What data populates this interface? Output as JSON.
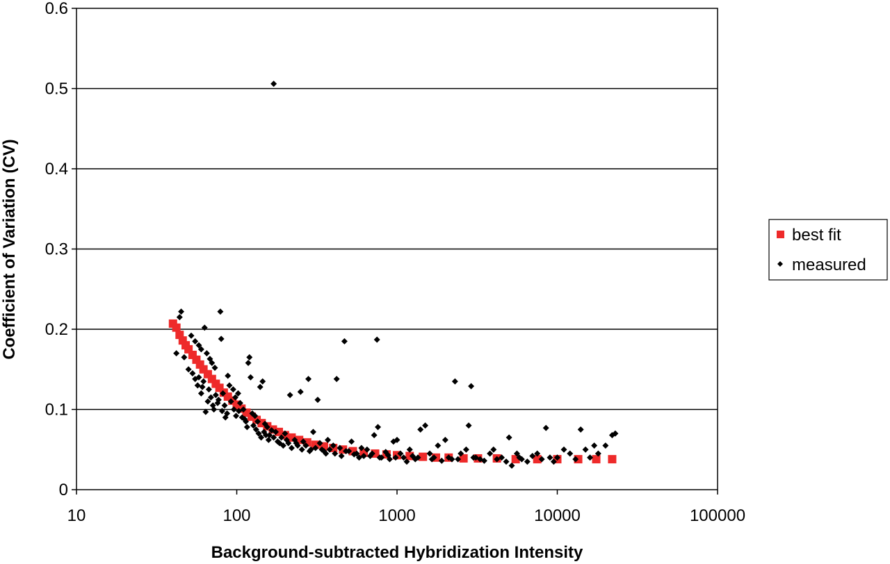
{
  "chart_data": {
    "type": "scatter",
    "title": "",
    "xlabel": "Background-subtracted Hybridization Intensity",
    "ylabel": "Coefficient of Variation (CV)",
    "x_scale": "log",
    "xlim": [
      10,
      100000
    ],
    "ylim": [
      0,
      0.6
    ],
    "x_ticks": [
      10,
      100,
      1000,
      10000,
      100000
    ],
    "x_tick_labels": [
      "10",
      "100",
      "1000",
      "10000",
      "100000"
    ],
    "y_ticks": [
      0,
      0.1,
      0.2,
      0.3,
      0.4,
      0.5,
      0.6
    ],
    "y_tick_labels": [
      "0",
      "0.1",
      "0.2",
      "0.3",
      "0.4",
      "0.5",
      "0.6"
    ],
    "grid": "horizontal",
    "legend_position": "right",
    "series": [
      {
        "name": "best fit",
        "marker": "square",
        "color": "#ee2a2a",
        "points": [
          [
            40,
            0.207
          ],
          [
            42,
            0.202
          ],
          [
            44,
            0.193
          ],
          [
            46,
            0.186
          ],
          [
            48,
            0.18
          ],
          [
            50,
            0.175
          ],
          [
            53,
            0.168
          ],
          [
            56,
            0.162
          ],
          [
            59,
            0.156
          ],
          [
            62,
            0.15
          ],
          [
            66,
            0.144
          ],
          [
            70,
            0.138
          ],
          [
            74,
            0.132
          ],
          [
            78,
            0.127
          ],
          [
            83,
            0.121
          ],
          [
            88,
            0.116
          ],
          [
            94,
            0.111
          ],
          [
            100,
            0.106
          ],
          [
            107,
            0.101
          ],
          [
            115,
            0.096
          ],
          [
            124,
            0.091
          ],
          [
            133,
            0.087
          ],
          [
            143,
            0.083
          ],
          [
            155,
            0.079
          ],
          [
            168,
            0.075
          ],
          [
            183,
            0.072
          ],
          [
            200,
            0.068
          ],
          [
            220,
            0.065
          ],
          [
            245,
            0.062
          ],
          [
            275,
            0.059
          ],
          [
            310,
            0.056
          ],
          [
            350,
            0.054
          ],
          [
            400,
            0.052
          ],
          [
            460,
            0.05
          ],
          [
            530,
            0.048
          ],
          [
            620,
            0.046
          ],
          [
            730,
            0.045
          ],
          [
            860,
            0.044
          ],
          [
            1000,
            0.043
          ],
          [
            1200,
            0.042
          ],
          [
            1450,
            0.041
          ],
          [
            1750,
            0.04
          ],
          [
            2100,
            0.04
          ],
          [
            2600,
            0.039
          ],
          [
            3200,
            0.039
          ],
          [
            4200,
            0.039
          ],
          [
            5500,
            0.038
          ],
          [
            7500,
            0.038
          ],
          [
            10000,
            0.038
          ],
          [
            13500,
            0.038
          ],
          [
            17500,
            0.038
          ],
          [
            22000,
            0.038
          ]
        ]
      },
      {
        "name": "measured",
        "marker": "diamond",
        "color": "#000000",
        "points": [
          [
            170,
            0.506
          ],
          [
            45,
            0.222
          ],
          [
            79,
            0.222
          ],
          [
            44,
            0.215
          ],
          [
            42,
            0.17
          ],
          [
            47,
            0.165
          ],
          [
            52,
            0.192
          ],
          [
            55,
            0.185
          ],
          [
            58,
            0.18
          ],
          [
            60,
            0.175
          ],
          [
            63,
            0.202
          ],
          [
            65,
            0.17
          ],
          [
            68,
            0.163
          ],
          [
            70,
            0.158
          ],
          [
            73,
            0.152
          ],
          [
            80,
            0.188
          ],
          [
            57,
            0.13
          ],
          [
            60,
            0.12
          ],
          [
            62,
            0.135
          ],
          [
            66,
            0.11
          ],
          [
            64,
            0.097
          ],
          [
            72,
            0.1
          ],
          [
            76,
            0.108
          ],
          [
            82,
            0.12
          ],
          [
            85,
            0.09
          ],
          [
            88,
            0.142
          ],
          [
            90,
            0.13
          ],
          [
            95,
            0.125
          ],
          [
            98,
            0.115
          ],
          [
            102,
            0.12
          ],
          [
            105,
            0.108
          ],
          [
            110,
            0.1
          ],
          [
            112,
            0.088
          ],
          [
            118,
            0.158
          ],
          [
            120,
            0.165
          ],
          [
            122,
            0.14
          ],
          [
            125,
            0.095
          ],
          [
            130,
            0.092
          ],
          [
            135,
            0.085
          ],
          [
            140,
            0.128
          ],
          [
            145,
            0.135
          ],
          [
            150,
            0.082
          ],
          [
            155,
            0.078
          ],
          [
            160,
            0.068
          ],
          [
            165,
            0.074
          ],
          [
            175,
            0.072
          ],
          [
            180,
            0.06
          ],
          [
            190,
            0.065
          ],
          [
            200,
            0.07
          ],
          [
            210,
            0.058
          ],
          [
            215,
            0.118
          ],
          [
            230,
            0.062
          ],
          [
            240,
            0.055
          ],
          [
            250,
            0.122
          ],
          [
            260,
            0.06
          ],
          [
            280,
            0.138
          ],
          [
            290,
            0.05
          ],
          [
            300,
            0.072
          ],
          [
            320,
            0.112
          ],
          [
            330,
            0.058
          ],
          [
            350,
            0.048
          ],
          [
            370,
            0.062
          ],
          [
            400,
            0.055
          ],
          [
            420,
            0.138
          ],
          [
            440,
            0.052
          ],
          [
            470,
            0.185
          ],
          [
            500,
            0.048
          ],
          [
            520,
            0.06
          ],
          [
            560,
            0.045
          ],
          [
            600,
            0.052
          ],
          [
            620,
            0.042
          ],
          [
            650,
            0.05
          ],
          [
            700,
            0.045
          ],
          [
            720,
            0.068
          ],
          [
            750,
            0.187
          ],
          [
            760,
            0.078
          ],
          [
            800,
            0.04
          ],
          [
            850,
            0.047
          ],
          [
            900,
            0.038
          ],
          [
            950,
            0.06
          ],
          [
            1000,
            0.062
          ],
          [
            1050,
            0.045
          ],
          [
            1100,
            0.04
          ],
          [
            1150,
            0.035
          ],
          [
            1200,
            0.05
          ],
          [
            1300,
            0.038
          ],
          [
            1400,
            0.075
          ],
          [
            1500,
            0.08
          ],
          [
            1600,
            0.045
          ],
          [
            1700,
            0.04
          ],
          [
            1800,
            0.055
          ],
          [
            1900,
            0.036
          ],
          [
            2000,
            0.062
          ],
          [
            2200,
            0.038
          ],
          [
            2300,
            0.135
          ],
          [
            2500,
            0.045
          ],
          [
            2700,
            0.05
          ],
          [
            2800,
            0.08
          ],
          [
            2900,
            0.129
          ],
          [
            3000,
            0.04
          ],
          [
            3300,
            0.038
          ],
          [
            3500,
            0.036
          ],
          [
            3800,
            0.045
          ],
          [
            4000,
            0.05
          ],
          [
            4500,
            0.04
          ],
          [
            4800,
            0.035
          ],
          [
            5000,
            0.065
          ],
          [
            5200,
            0.03
          ],
          [
            5600,
            0.045
          ],
          [
            6000,
            0.038
          ],
          [
            6500,
            0.035
          ],
          [
            7000,
            0.042
          ],
          [
            7500,
            0.045
          ],
          [
            8000,
            0.038
          ],
          [
            8500,
            0.077
          ],
          [
            9000,
            0.04
          ],
          [
            9500,
            0.035
          ],
          [
            10000,
            0.04
          ],
          [
            11000,
            0.05
          ],
          [
            12000,
            0.045
          ],
          [
            13000,
            0.038
          ],
          [
            14000,
            0.075
          ],
          [
            15000,
            0.05
          ],
          [
            16000,
            0.04
          ],
          [
            17000,
            0.055
          ],
          [
            18000,
            0.045
          ],
          [
            20000,
            0.055
          ],
          [
            22000,
            0.068
          ],
          [
            23000,
            0.07
          ],
          [
            50,
            0.15
          ],
          [
            53,
            0.145
          ],
          [
            55,
            0.138
          ],
          [
            58,
            0.14
          ],
          [
            61,
            0.128
          ],
          [
            67,
            0.125
          ],
          [
            69,
            0.115
          ],
          [
            71,
            0.105
          ],
          [
            74,
            0.118
          ],
          [
            77,
            0.112
          ],
          [
            81,
            0.098
          ],
          [
            84,
            0.105
          ],
          [
            87,
            0.095
          ],
          [
            92,
            0.11
          ],
          [
            96,
            0.1
          ],
          [
            99,
            0.092
          ],
          [
            103,
            0.098
          ],
          [
            108,
            0.09
          ],
          [
            114,
            0.085
          ],
          [
            116,
            0.078
          ],
          [
            127,
            0.08
          ],
          [
            132,
            0.075
          ],
          [
            137,
            0.07
          ],
          [
            142,
            0.065
          ],
          [
            148,
            0.072
          ],
          [
            152,
            0.068
          ],
          [
            158,
            0.062
          ],
          [
            170,
            0.065
          ],
          [
            185,
            0.058
          ],
          [
            195,
            0.055
          ],
          [
            205,
            0.062
          ],
          [
            220,
            0.052
          ],
          [
            235,
            0.058
          ],
          [
            255,
            0.05
          ],
          [
            270,
            0.055
          ],
          [
            285,
            0.048
          ],
          [
            310,
            0.052
          ],
          [
            340,
            0.05
          ],
          [
            360,
            0.045
          ],
          [
            380,
            0.05
          ],
          [
            410,
            0.045
          ],
          [
            450,
            0.042
          ],
          [
            480,
            0.048
          ],
          [
            540,
            0.044
          ],
          [
            580,
            0.04
          ],
          [
            680,
            0.042
          ],
          [
            780,
            0.04
          ],
          [
            880,
            0.043
          ],
          [
            980,
            0.04
          ],
          [
            1250,
            0.042
          ],
          [
            1350,
            0.04
          ],
          [
            1650,
            0.038
          ],
          [
            2100,
            0.04
          ],
          [
            2400,
            0.038
          ],
          [
            3100,
            0.04
          ],
          [
            4200,
            0.038
          ],
          [
            5800,
            0.04
          ]
        ]
      }
    ]
  }
}
